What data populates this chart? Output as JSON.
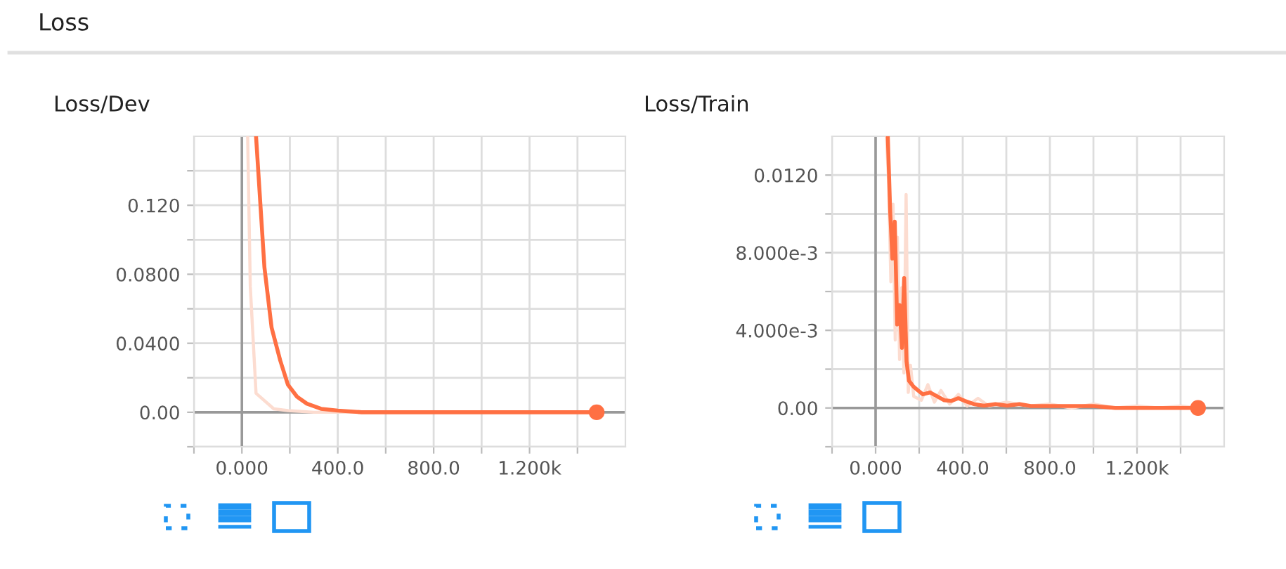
{
  "chart_data": [
    {
      "type": "line",
      "title": "Loss/Dev",
      "annotations": [
        "Loss"
      ],
      "grid": true,
      "legend": false,
      "xlim": [
        -200,
        1600
      ],
      "ylim": [
        -0.02,
        0.16
      ],
      "xticks": [
        {
          "value": -200,
          "label": null
        },
        {
          "value": 0,
          "label": "0.000"
        },
        {
          "value": 200,
          "label": null
        },
        {
          "value": 400,
          "label": "400.0"
        },
        {
          "value": 600,
          "label": null
        },
        {
          "value": 800,
          "label": "800.0"
        },
        {
          "value": 1000,
          "label": null
        },
        {
          "value": 1200,
          "label": "1.200k"
        },
        {
          "value": 1400,
          "label": null
        }
      ],
      "yticks": [
        {
          "value": -0.02,
          "label": null
        },
        {
          "value": 0,
          "label": "0.00"
        },
        {
          "value": 0.02,
          "label": null
        },
        {
          "value": 0.04,
          "label": "0.0400"
        },
        {
          "value": 0.06,
          "label": null
        },
        {
          "value": 0.08,
          "label": "0.0800"
        },
        {
          "value": 0.1,
          "label": null
        },
        {
          "value": 0.12,
          "label": "0.120"
        },
        {
          "value": 0.14,
          "label": null
        }
      ],
      "series": [
        {
          "type": "line",
          "color": "#fcdcd0",
          "x": [
            24,
            35,
            59,
            133,
            192,
            300,
            600,
            1000,
            1480
          ],
          "values": [
            0.16,
            0.073,
            0.011,
            0.002,
            0.001,
            0,
            0,
            0,
            0
          ]
        },
        {
          "type": "line",
          "color": "#ff7043",
          "x": [
            59,
            94,
            124,
            160,
            192,
            230,
            271,
            330,
            400,
            500,
            700,
            1000,
            1300,
            1480
          ],
          "values": [
            0.16,
            0.084,
            0.049,
            0.03,
            0.016,
            0.009,
            0.005,
            0.002,
            0.001,
            0,
            0,
            0,
            0,
            0
          ]
        },
        {
          "type": "scatter",
          "color": "#ff7043",
          "x": [
            1480
          ],
          "values": [
            0
          ]
        }
      ]
    },
    {
      "type": "line",
      "title": "Loss/Train",
      "grid": true,
      "legend": false,
      "xlim": [
        -200,
        1600
      ],
      "ylim": [
        -0.002,
        0.014
      ],
      "xticks": [
        {
          "value": -200,
          "label": null
        },
        {
          "value": 0,
          "label": "0.000"
        },
        {
          "value": 200,
          "label": null
        },
        {
          "value": 400,
          "label": "400.0"
        },
        {
          "value": 600,
          "label": null
        },
        {
          "value": 800,
          "label": "800.0"
        },
        {
          "value": 1000,
          "label": null
        },
        {
          "value": 1200,
          "label": "1.200k"
        },
        {
          "value": 1400,
          "label": null
        }
      ],
      "yticks": [
        {
          "value": -0.002,
          "label": null
        },
        {
          "value": 0,
          "label": "0.00"
        },
        {
          "value": 0.002,
          "label": null
        },
        {
          "value": 0.004,
          "label": "4.000e-3"
        },
        {
          "value": 0.006,
          "label": null
        },
        {
          "value": 0.008,
          "label": "8.000e-3"
        },
        {
          "value": 0.01,
          "label": null
        },
        {
          "value": 0.012,
          "label": "0.0120"
        }
      ],
      "series": [
        {
          "type": "line",
          "color": "#fcdcd0",
          "x": [
            50,
            60,
            70,
            80,
            90,
            100,
            110,
            120,
            130,
            140,
            150,
            160,
            175,
            210,
            240,
            270,
            300,
            340,
            380,
            420,
            470,
            520,
            600,
            700,
            800,
            900,
            1000,
            1100,
            1200,
            1300,
            1400,
            1480
          ],
          "values": [
            0.014,
            0.0115,
            0.0065,
            0.0105,
            0.0035,
            0.0088,
            0.0025,
            0.0062,
            0.0018,
            0.011,
            0.0008,
            0.0022,
            0.0006,
            0.0004,
            0.0012,
            0.0003,
            0.0009,
            0.0002,
            0.0007,
            0.0001,
            0.0005,
            0.0001,
            0.0003,
            0.0001,
            0.0002,
            0.0,
            0.0002,
            0.0,
            0.0001,
            0.0,
            0.0001,
            0.0
          ]
        },
        {
          "type": "line",
          "color": "#ff7043",
          "x": [
            56,
            67,
            77,
            88,
            99,
            110,
            121,
            131,
            142,
            153,
            174,
            195,
            217,
            250,
            282,
            315,
            346,
            380,
            411,
            450,
            497,
            550,
            604,
            660,
            712,
            800,
            900,
            1000,
            1100,
            1200,
            1357,
            1480
          ],
          "values": [
            0.014,
            0.0101,
            0.0077,
            0.0096,
            0.0043,
            0.0053,
            0.0031,
            0.0067,
            0.0024,
            0.0014,
            0.0011,
            0.0009,
            0.0007,
            0.0008,
            0.0006,
            0.0004,
            0.00036,
            0.0005,
            0.00036,
            0.0002,
            0.00012,
            0.0002,
            0.00012,
            0.0002,
            0.0001,
            0.0001,
            0.0001,
            0.0001,
            0,
            0,
            0,
            0
          ]
        },
        {
          "type": "scatter",
          "color": "#ff7043",
          "x": [
            1480
          ],
          "values": [
            0
          ]
        }
      ]
    }
  ]
}
